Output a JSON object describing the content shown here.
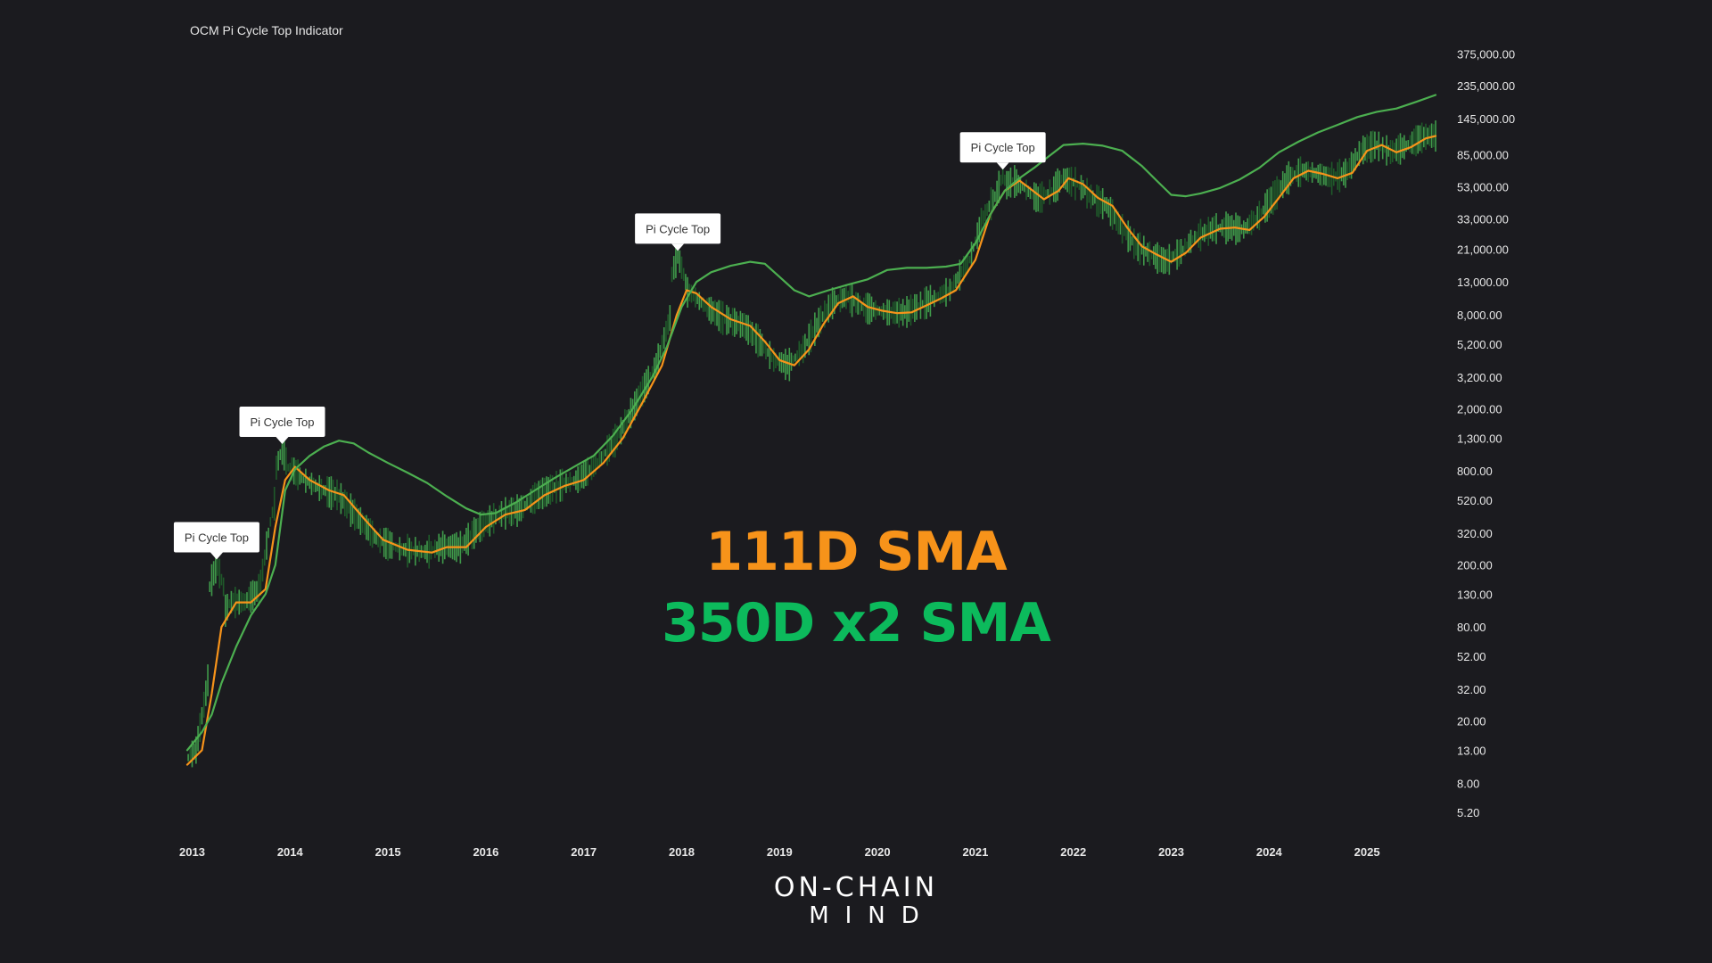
{
  "colors": {
    "background": "#1b1b1f",
    "sma111": "#f7931a",
    "sma350x2": "#4caf50",
    "legend_green": "#0cba5c",
    "candle_up": "#3f9a4a",
    "candle_down": "#1f5a2a"
  },
  "chart_data": {
    "type": "line",
    "title": "OCM Pi Cycle Top Indicator",
    "y_scale": "log",
    "ylim": [
      4.5,
      420000
    ],
    "xlim": [
      2012.95,
      2025.7
    ],
    "grid": false,
    "y_ticks": [
      {
        "value": 375000,
        "label": "375,000.00"
      },
      {
        "value": 235000,
        "label": "235,000.00"
      },
      {
        "value": 145000,
        "label": "145,000.00"
      },
      {
        "value": 85000,
        "label": "85,000.00"
      },
      {
        "value": 53000,
        "label": "53,000.00"
      },
      {
        "value": 33000,
        "label": "33,000.00"
      },
      {
        "value": 21000,
        "label": "21,000.00"
      },
      {
        "value": 13000,
        "label": "13,000.00"
      },
      {
        "value": 8000,
        "label": "8,000.00"
      },
      {
        "value": 5200,
        "label": "5,200.00"
      },
      {
        "value": 3200,
        "label": "3,200.00"
      },
      {
        "value": 2000,
        "label": "2,000.00"
      },
      {
        "value": 1300,
        "label": "1,300.00"
      },
      {
        "value": 800,
        "label": "800.00"
      },
      {
        "value": 520,
        "label": "520.00"
      },
      {
        "value": 320,
        "label": "320.00"
      },
      {
        "value": 200,
        "label": "200.00"
      },
      {
        "value": 130,
        "label": "130.00"
      },
      {
        "value": 80,
        "label": "80.00"
      },
      {
        "value": 52,
        "label": "52.00"
      },
      {
        "value": 32,
        "label": "32.00"
      },
      {
        "value": 20,
        "label": "20.00"
      },
      {
        "value": 13,
        "label": "13.00"
      },
      {
        "value": 8,
        "label": "8.00"
      },
      {
        "value": 5.2,
        "label": "5.20"
      }
    ],
    "x_ticks": [
      {
        "value": 2013,
        "label": "2013"
      },
      {
        "value": 2014,
        "label": "2014"
      },
      {
        "value": 2015,
        "label": "2015"
      },
      {
        "value": 2016,
        "label": "2016"
      },
      {
        "value": 2017,
        "label": "2017"
      },
      {
        "value": 2018,
        "label": "2018"
      },
      {
        "value": 2019,
        "label": "2019"
      },
      {
        "value": 2020,
        "label": "2020"
      },
      {
        "value": 2021,
        "label": "2021"
      },
      {
        "value": 2022,
        "label": "2022"
      },
      {
        "value": 2023,
        "label": "2023"
      },
      {
        "value": 2024,
        "label": "2024"
      },
      {
        "value": 2025,
        "label": "2025"
      }
    ],
    "series": [
      {
        "name": "111D SMA",
        "color": "#f7931a",
        "points": [
          [
            2012.95,
            10.5
          ],
          [
            2013.1,
            13
          ],
          [
            2013.2,
            30
          ],
          [
            2013.3,
            80
          ],
          [
            2013.45,
            115
          ],
          [
            2013.6,
            115
          ],
          [
            2013.75,
            140
          ],
          [
            2013.85,
            350
          ],
          [
            2013.95,
            700
          ],
          [
            2014.05,
            850
          ],
          [
            2014.2,
            700
          ],
          [
            2014.4,
            600
          ],
          [
            2014.55,
            560
          ],
          [
            2014.75,
            400
          ],
          [
            2014.95,
            290
          ],
          [
            2015.2,
            250
          ],
          [
            2015.45,
            240
          ],
          [
            2015.6,
            260
          ],
          [
            2015.8,
            260
          ],
          [
            2016.0,
            350
          ],
          [
            2016.2,
            420
          ],
          [
            2016.4,
            450
          ],
          [
            2016.6,
            560
          ],
          [
            2016.8,
            640
          ],
          [
            2017.0,
            700
          ],
          [
            2017.2,
            900
          ],
          [
            2017.4,
            1300
          ],
          [
            2017.6,
            2200
          ],
          [
            2017.8,
            3800
          ],
          [
            2017.95,
            8000
          ],
          [
            2018.05,
            11500
          ],
          [
            2018.15,
            11000
          ],
          [
            2018.3,
            9000
          ],
          [
            2018.5,
            7500
          ],
          [
            2018.7,
            6800
          ],
          [
            2018.85,
            5400
          ],
          [
            2019.0,
            4100
          ],
          [
            2019.15,
            3800
          ],
          [
            2019.3,
            4800
          ],
          [
            2019.45,
            7000
          ],
          [
            2019.6,
            9500
          ],
          [
            2019.75,
            10500
          ],
          [
            2019.9,
            9000
          ],
          [
            2020.05,
            8500
          ],
          [
            2020.2,
            8200
          ],
          [
            2020.35,
            8300
          ],
          [
            2020.5,
            9200
          ],
          [
            2020.65,
            10200
          ],
          [
            2020.8,
            11500
          ],
          [
            2021.0,
            18000
          ],
          [
            2021.15,
            35000
          ],
          [
            2021.3,
            50000
          ],
          [
            2021.45,
            58000
          ],
          [
            2021.55,
            52000
          ],
          [
            2021.7,
            44000
          ],
          [
            2021.85,
            50000
          ],
          [
            2021.95,
            60000
          ],
          [
            2022.1,
            55000
          ],
          [
            2022.25,
            45000
          ],
          [
            2022.4,
            40000
          ],
          [
            2022.55,
            29000
          ],
          [
            2022.7,
            22000
          ],
          [
            2022.85,
            19500
          ],
          [
            2023.0,
            17500
          ],
          [
            2023.15,
            20000
          ],
          [
            2023.3,
            25000
          ],
          [
            2023.5,
            28500
          ],
          [
            2023.65,
            29000
          ],
          [
            2023.8,
            28000
          ],
          [
            2023.95,
            34000
          ],
          [
            2024.1,
            45000
          ],
          [
            2024.25,
            60000
          ],
          [
            2024.4,
            67000
          ],
          [
            2024.55,
            64000
          ],
          [
            2024.7,
            60000
          ],
          [
            2024.85,
            65000
          ],
          [
            2025.0,
            90000
          ],
          [
            2025.15,
            98000
          ],
          [
            2025.3,
            88000
          ],
          [
            2025.45,
            95000
          ],
          [
            2025.6,
            108000
          ],
          [
            2025.7,
            112000
          ]
        ]
      },
      {
        "name": "350D x2 SMA",
        "color": "#4caf50",
        "points": [
          [
            2012.95,
            13
          ],
          [
            2013.1,
            17
          ],
          [
            2013.2,
            22
          ],
          [
            2013.3,
            35
          ],
          [
            2013.45,
            60
          ],
          [
            2013.6,
            95
          ],
          [
            2013.75,
            130
          ],
          [
            2013.85,
            200
          ],
          [
            2013.95,
            600
          ],
          [
            2014.05,
            820
          ],
          [
            2014.2,
            1000
          ],
          [
            2014.35,
            1150
          ],
          [
            2014.5,
            1250
          ],
          [
            2014.65,
            1200
          ],
          [
            2014.8,
            1050
          ],
          [
            2015.0,
            900
          ],
          [
            2015.2,
            780
          ],
          [
            2015.4,
            670
          ],
          [
            2015.6,
            550
          ],
          [
            2015.8,
            460
          ],
          [
            2015.95,
            420
          ],
          [
            2016.1,
            430
          ],
          [
            2016.3,
            500
          ],
          [
            2016.5,
            600
          ],
          [
            2016.7,
            720
          ],
          [
            2016.9,
            850
          ],
          [
            2017.1,
            1000
          ],
          [
            2017.3,
            1350
          ],
          [
            2017.5,
            2000
          ],
          [
            2017.7,
            3200
          ],
          [
            2017.85,
            5000
          ],
          [
            2018.0,
            9000
          ],
          [
            2018.15,
            13000
          ],
          [
            2018.3,
            15000
          ],
          [
            2018.5,
            16500
          ],
          [
            2018.7,
            17500
          ],
          [
            2018.85,
            17000
          ],
          [
            2019.0,
            14000
          ],
          [
            2019.15,
            11500
          ],
          [
            2019.3,
            10500
          ],
          [
            2019.5,
            11500
          ],
          [
            2019.7,
            12500
          ],
          [
            2019.9,
            13500
          ],
          [
            2020.1,
            15500
          ],
          [
            2020.3,
            16000
          ],
          [
            2020.5,
            16000
          ],
          [
            2020.7,
            16300
          ],
          [
            2020.85,
            17000
          ],
          [
            2021.0,
            23000
          ],
          [
            2021.15,
            35000
          ],
          [
            2021.3,
            50000
          ],
          [
            2021.45,
            60000
          ],
          [
            2021.6,
            70000
          ],
          [
            2021.75,
            83000
          ],
          [
            2021.9,
            98000
          ],
          [
            2022.1,
            100000
          ],
          [
            2022.3,
            97000
          ],
          [
            2022.5,
            90000
          ],
          [
            2022.7,
            72000
          ],
          [
            2022.85,
            58000
          ],
          [
            2023.0,
            47000
          ],
          [
            2023.15,
            46000
          ],
          [
            2023.3,
            48000
          ],
          [
            2023.5,
            52000
          ],
          [
            2023.7,
            59000
          ],
          [
            2023.9,
            70000
          ],
          [
            2024.1,
            88000
          ],
          [
            2024.3,
            103000
          ],
          [
            2024.5,
            118000
          ],
          [
            2024.7,
            132000
          ],
          [
            2024.9,
            148000
          ],
          [
            2025.1,
            160000
          ],
          [
            2025.3,
            168000
          ],
          [
            2025.5,
            185000
          ],
          [
            2025.7,
            205000
          ]
        ]
      }
    ],
    "annotations": [
      {
        "label": "Pi Cycle Top",
        "x": 2013.25,
        "y": 200
      },
      {
        "label": "Pi Cycle Top",
        "x": 2013.92,
        "y": 1100
      },
      {
        "label": "Pi Cycle Top",
        "x": 2017.96,
        "y": 19000
      },
      {
        "label": "Pi Cycle Top",
        "x": 2021.28,
        "y": 63000
      }
    ]
  },
  "legend": {
    "sma111_label": "111D SMA",
    "sma350_label": "350D x2 SMA"
  },
  "branding": {
    "line1": "ON-CHAIN",
    "line2": "MIND"
  }
}
